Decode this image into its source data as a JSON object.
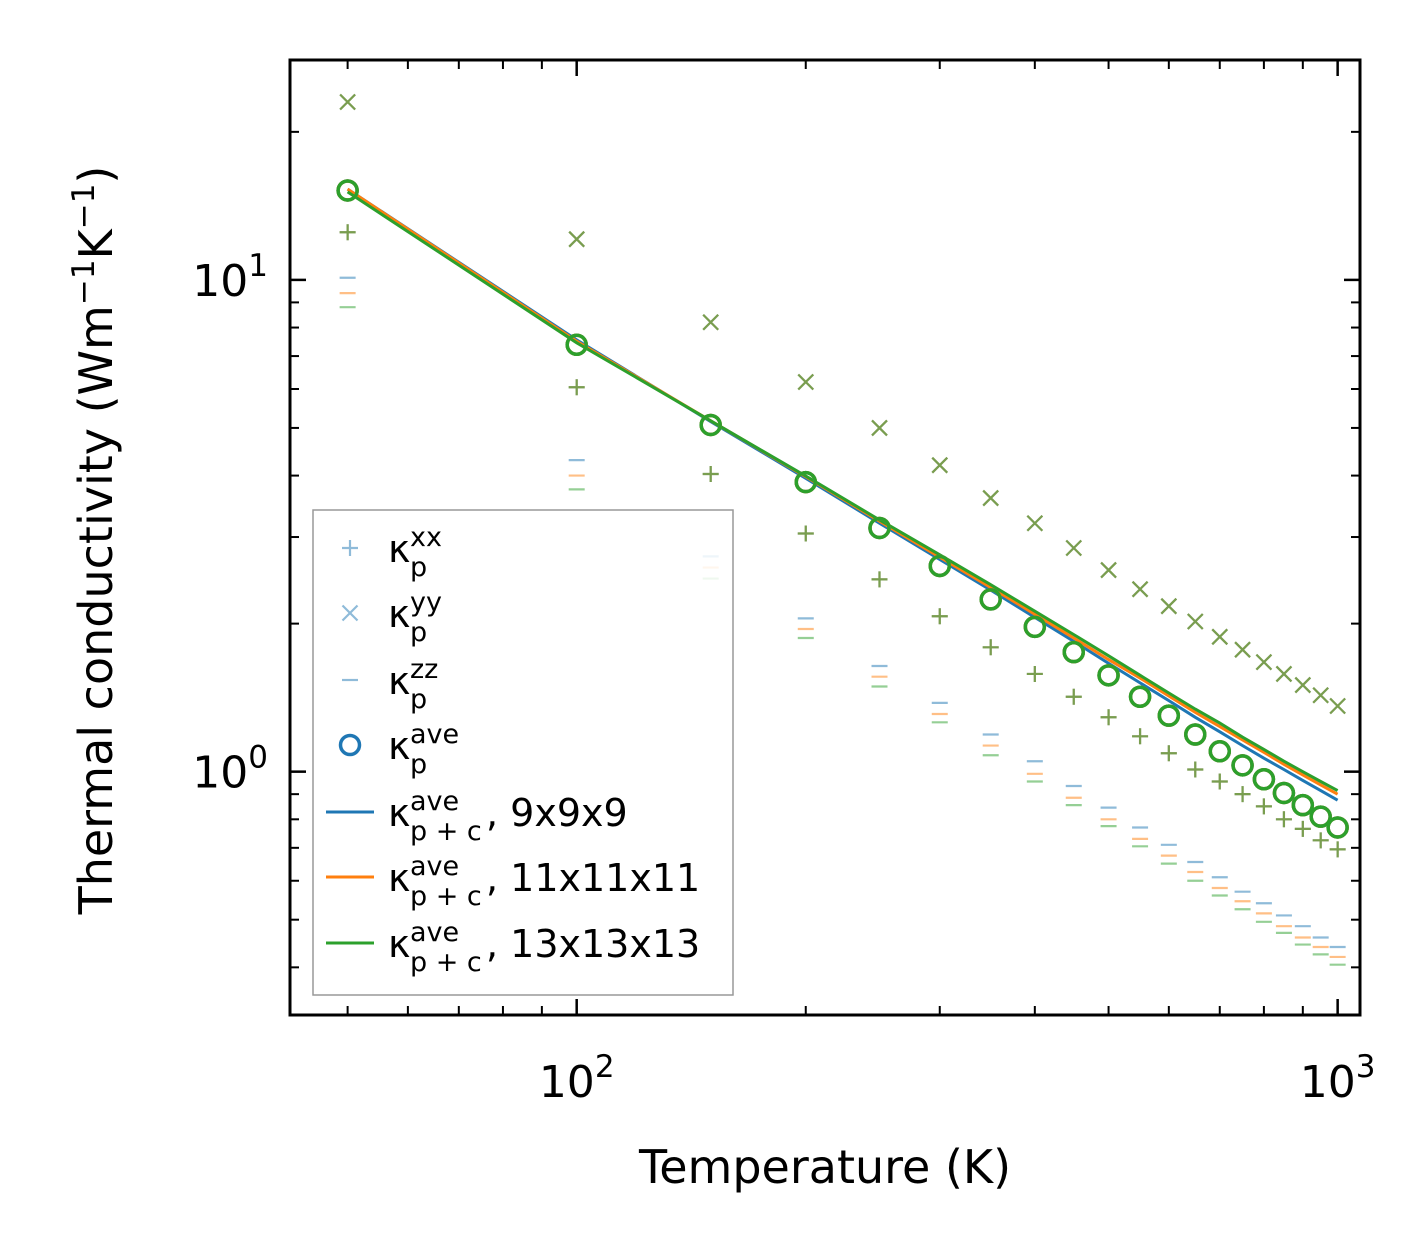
{
  "chart_data": {
    "type": "scatter",
    "title": "",
    "xlabel": "Temperature (K)",
    "ylabel": {
      "main": "Thermal conductivity (Wm",
      "sup1": "−1",
      "mid": "K",
      "sup2": "−1",
      "close": ")"
    },
    "xscale": "log",
    "yscale": "log",
    "xlim": [
      42,
      1070
    ],
    "ylim": [
      0.32,
      28
    ],
    "xticks": [
      {
        "value": 100,
        "base": "10",
        "exp": "2"
      },
      {
        "value": 1000,
        "base": "10",
        "exp": "3"
      }
    ],
    "yticks": [
      {
        "value": 1,
        "base": "10",
        "exp": "0"
      },
      {
        "value": 10,
        "base": "10",
        "exp": "1"
      }
    ],
    "legend_position": "lower-left",
    "colors": {
      "c9": "#1f77b4",
      "c11": "#ff7f0e",
      "c13": "#2ca02c"
    },
    "temperatures": [
      50,
      100,
      150,
      200,
      250,
      300,
      350,
      400,
      450,
      500,
      550,
      600,
      650,
      700,
      750,
      800,
      850,
      900,
      950,
      1000
    ],
    "series": [
      {
        "name": "κp xx",
        "kind": "plus",
        "colors": [
          "c9",
          "c11",
          "c13"
        ],
        "values": [
          12.5,
          6.05,
          4.03,
          3.05,
          2.46,
          2.07,
          1.79,
          1.58,
          1.42,
          1.29,
          1.18,
          1.09,
          1.01,
          0.955,
          0.9,
          0.85,
          0.8,
          0.765,
          0.725,
          0.695
        ]
      },
      {
        "name": "κp yy",
        "kind": "x",
        "colors": [
          "c9",
          "c11",
          "c13"
        ],
        "values": [
          23.0,
          12.1,
          8.2,
          6.2,
          5.0,
          4.2,
          3.6,
          3.2,
          2.85,
          2.57,
          2.35,
          2.17,
          2.02,
          1.88,
          1.77,
          1.67,
          1.58,
          1.5,
          1.43,
          1.36
        ]
      },
      {
        "name": "κp zz",
        "kind": "dash",
        "values": {
          "c9": [
            10.1,
            4.3,
            2.74,
            2.05,
            1.64,
            1.38,
            1.19,
            1.05,
            0.935,
            0.845,
            0.77,
            0.71,
            0.655,
            0.61,
            0.57,
            0.54,
            0.51,
            0.485,
            0.46,
            0.44
          ],
          "c11": [
            9.4,
            4.0,
            2.6,
            1.95,
            1.56,
            1.31,
            1.13,
            0.99,
            0.885,
            0.8,
            0.73,
            0.675,
            0.625,
            0.58,
            0.545,
            0.515,
            0.485,
            0.46,
            0.44,
            0.42
          ],
          "c13": [
            8.8,
            3.75,
            2.47,
            1.87,
            1.49,
            1.26,
            1.08,
            0.955,
            0.855,
            0.775,
            0.705,
            0.65,
            0.6,
            0.56,
            0.525,
            0.495,
            0.47,
            0.445,
            0.425,
            0.405
          ]
        }
      },
      {
        "name": "κp ave",
        "kind": "circle",
        "colors": [
          "c9",
          "c11",
          "c13"
        ],
        "values": [
          15.2,
          7.38,
          5.07,
          3.88,
          3.13,
          2.62,
          2.24,
          1.97,
          1.75,
          1.57,
          1.42,
          1.3,
          1.19,
          1.1,
          1.03,
          0.965,
          0.905,
          0.855,
          0.81,
          0.77
        ]
      },
      {
        "name": "κp+c ave, 9x9x9",
        "kind": "line",
        "color": "c9",
        "values": [
          15.3,
          7.55,
          5.15,
          3.95,
          3.2,
          2.7,
          2.34,
          2.06,
          1.84,
          1.66,
          1.515,
          1.395,
          1.29,
          1.205,
          1.13,
          1.065,
          1.01,
          0.96,
          0.915,
          0.875
        ]
      },
      {
        "name": "κp+c ave, 11x11x11",
        "kind": "line",
        "color": "c11",
        "values": [
          15.3,
          7.5,
          5.17,
          3.98,
          3.23,
          2.73,
          2.37,
          2.09,
          1.87,
          1.69,
          1.55,
          1.425,
          1.32,
          1.235,
          1.16,
          1.095,
          1.035,
          0.985,
          0.94,
          0.9
        ]
      },
      {
        "name": "κp+c ave, 13x13x13",
        "kind": "line",
        "color": "c13",
        "values": [
          15.1,
          7.45,
          5.17,
          3.99,
          3.25,
          2.76,
          2.4,
          2.12,
          1.9,
          1.72,
          1.57,
          1.445,
          1.34,
          1.255,
          1.175,
          1.11,
          1.05,
          1.0,
          0.955,
          0.915
        ]
      }
    ],
    "legend": [
      {
        "marker": "plus",
        "color": "c9",
        "kappa": "κ",
        "sub": "p",
        "sup": "xx",
        "suffix": ""
      },
      {
        "marker": "x",
        "color": "c9",
        "kappa": "κ",
        "sub": "p",
        "sup": "yy",
        "suffix": ""
      },
      {
        "marker": "dash",
        "color": "c9",
        "kappa": "κ",
        "sub": "p",
        "sup": "zz",
        "suffix": ""
      },
      {
        "marker": "circle",
        "color": "c9",
        "kappa": "κ",
        "sub": "p",
        "sup": "ave",
        "suffix": ""
      },
      {
        "marker": "line",
        "color": "c9",
        "kappa": "κ",
        "sub": "p + c",
        "sup": "ave",
        "suffix": ", 9x9x9"
      },
      {
        "marker": "line",
        "color": "c11",
        "kappa": "κ",
        "sub": "p + c",
        "sup": "ave",
        "suffix": ", 11x11x11"
      },
      {
        "marker": "line",
        "color": "c13",
        "kappa": "κ",
        "sub": "p + c",
        "sup": "ave",
        "suffix": ", 13x13x13"
      }
    ]
  }
}
